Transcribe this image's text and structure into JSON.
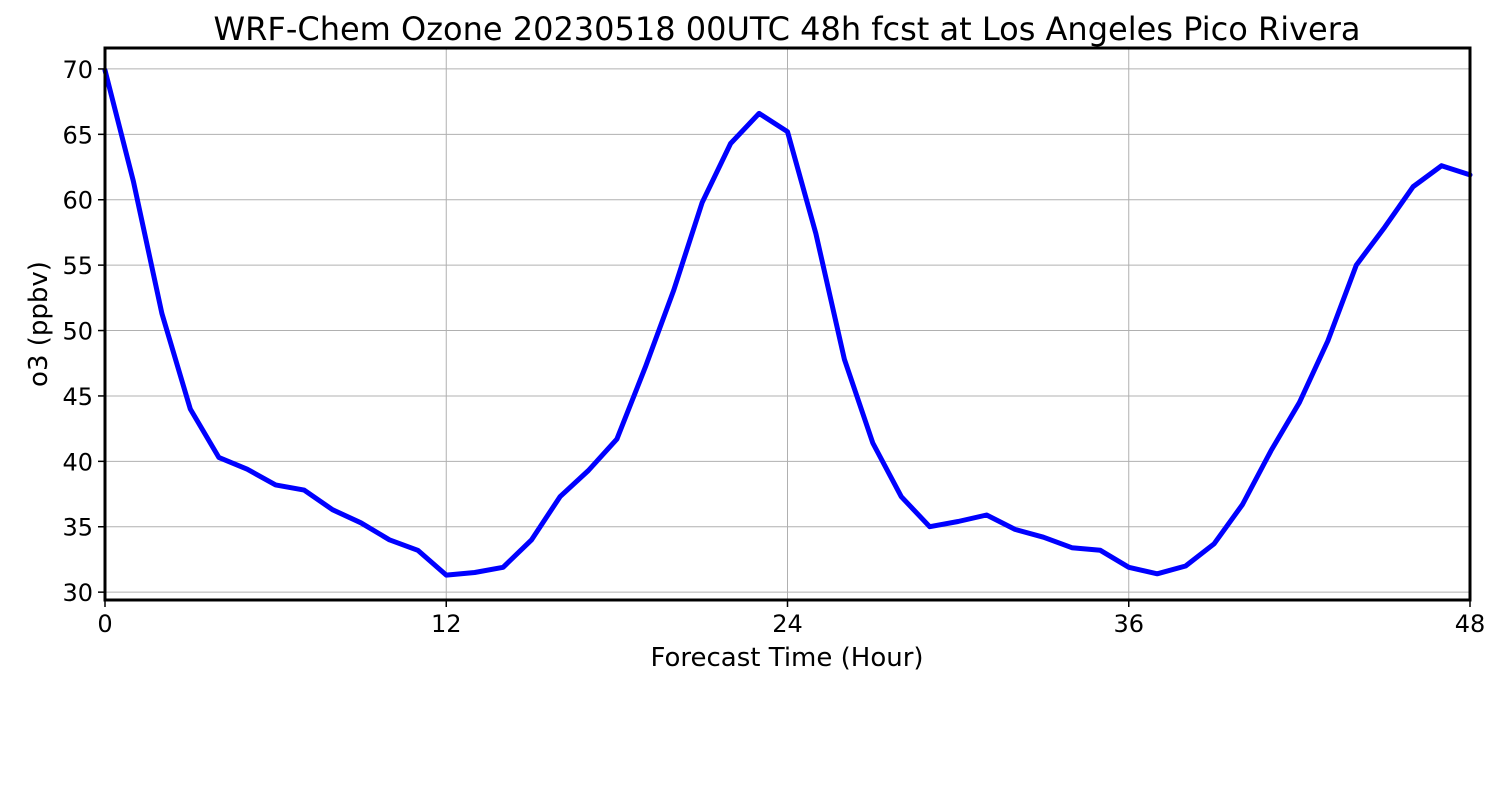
{
  "chart_data": {
    "type": "line",
    "title": "WRF-Chem Ozone  20230518 00UTC 48h fcst at Los Angeles Pico Rivera",
    "xlabel": "Forecast Time (Hour)",
    "ylabel": "o3  (ppbv)",
    "xlim": [
      0,
      48
    ],
    "ylim": [
      29.4,
      71.6
    ],
    "xticks": [
      0,
      12,
      24,
      36,
      48
    ],
    "yticks": [
      30,
      35,
      40,
      45,
      50,
      55,
      60,
      65,
      70
    ],
    "grid": true,
    "series": [
      {
        "color": "#0000ff",
        "x": [
          0,
          1,
          2,
          3,
          4,
          5,
          6,
          7,
          8,
          9,
          10,
          11,
          12,
          13,
          14,
          15,
          16,
          17,
          18,
          19,
          20,
          21,
          22,
          23,
          24,
          25,
          26,
          27,
          28,
          29,
          30,
          31,
          32,
          33,
          34,
          35,
          36,
          37,
          38,
          39,
          40,
          41,
          42,
          43,
          44,
          45,
          46,
          47,
          48
        ],
        "values": [
          69.9,
          61.4,
          51.3,
          44.0,
          40.3,
          39.4,
          38.2,
          37.8,
          36.3,
          35.3,
          34.0,
          33.2,
          31.3,
          31.5,
          31.9,
          34.0,
          37.3,
          39.3,
          41.7,
          47.2,
          53.1,
          59.8,
          64.3,
          66.6,
          65.2,
          57.4,
          47.8,
          41.4,
          37.3,
          35.0,
          35.4,
          35.9,
          34.8,
          34.2,
          33.4,
          33.2,
          31.9,
          31.4,
          32.0,
          33.7,
          36.7,
          40.8,
          44.5,
          49.2,
          55.0,
          57.9,
          61.0,
          62.6,
          61.9
        ]
      }
    ]
  }
}
